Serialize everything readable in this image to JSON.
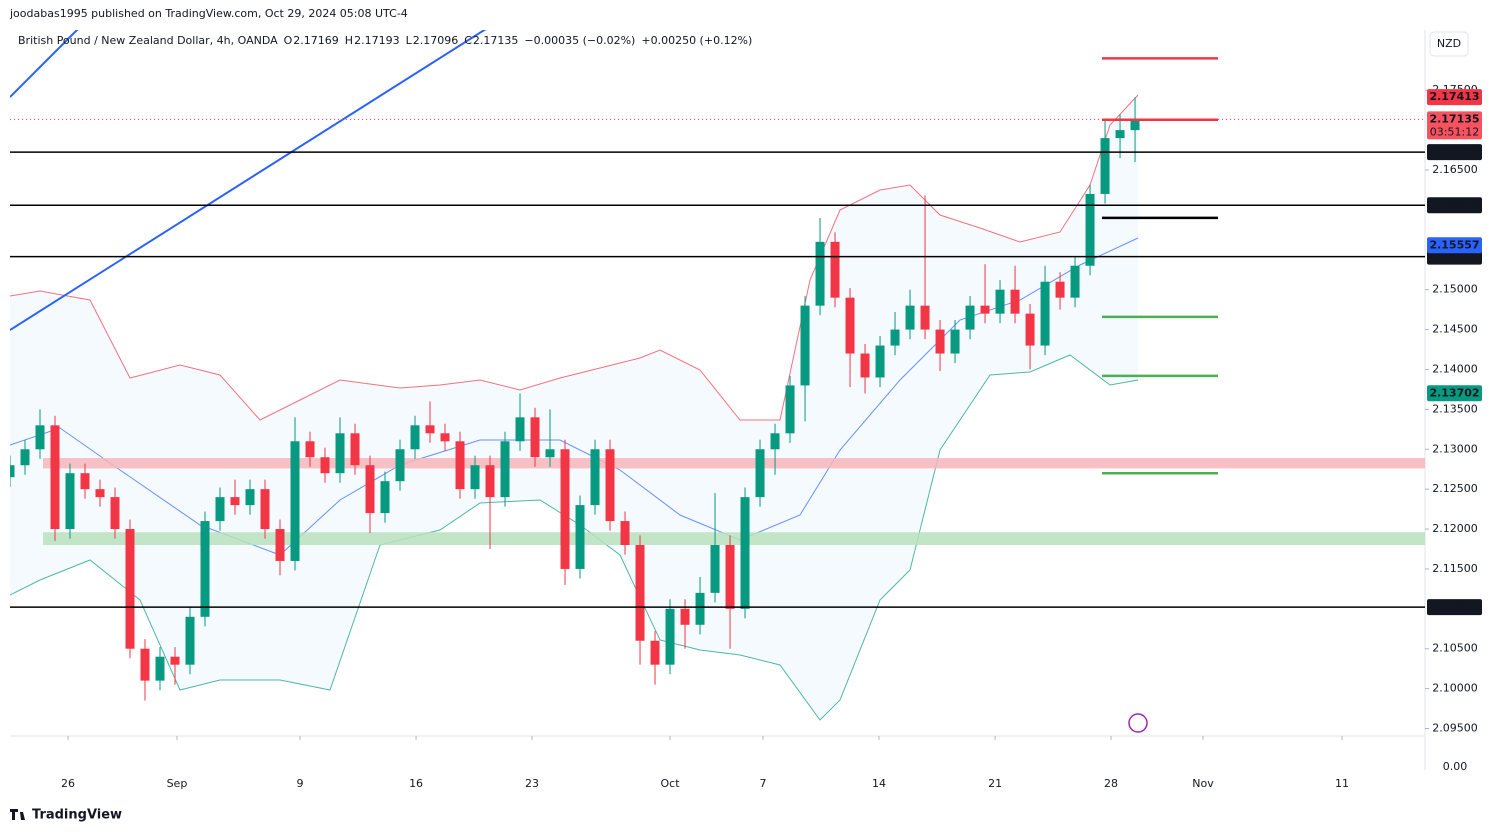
{
  "chart_data": {
    "type": "candlestick",
    "publisher": "joodabas1995 published on TradingView.com, Oct 29, 2024 05:08 UTC-4",
    "symbol": "British Pound / New Zealand Dollar, 4h, OANDA",
    "ohlc_header": [
      {
        "label": "O",
        "value": "2.17169"
      },
      {
        "label": "H",
        "value": "2.17193"
      },
      {
        "label": "L",
        "value": "2.17096"
      },
      {
        "label": "C",
        "value": "2.17135"
      }
    ],
    "change": "−0.00035 (−0.02%)",
    "change2": "+0.00250 (+0.12%)",
    "currency": "NZD",
    "brand": "TradingView",
    "axis_bottom_label": "0.00",
    "up_color": "#089981",
    "down_color": "#f23645",
    "xlim": [
      0,
      94.33
    ],
    "ylim": [
      2.09406,
      2.18255
    ],
    "xticks": [
      {
        "value": 3.87,
        "label": "26"
      },
      {
        "value": 11.13,
        "label": "Sep"
      },
      {
        "value": 19.33,
        "label": "9"
      },
      {
        "value": 27.07,
        "label": "16"
      },
      {
        "value": 34.8,
        "label": "23"
      },
      {
        "value": 44,
        "label": "Oct"
      },
      {
        "value": 50.2,
        "label": "7"
      },
      {
        "value": 57.93,
        "label": "14"
      },
      {
        "value": 65.67,
        "label": "21"
      },
      {
        "value": 73.4,
        "label": "28"
      },
      {
        "value": 79.53,
        "label": "Nov"
      },
      {
        "value": 88.8,
        "label": "11"
      }
    ],
    "yticks": [
      {
        "value": 2.095,
        "label": "2.09500"
      },
      {
        "value": 2.1,
        "label": "2.10000"
      },
      {
        "value": 2.105,
        "label": "2.10500"
      },
      {
        "value": 2.115,
        "label": "2.11500"
      },
      {
        "value": 2.12,
        "label": "2.12000"
      },
      {
        "value": 2.125,
        "label": "2.12500"
      },
      {
        "value": 2.13,
        "label": "2.13000"
      },
      {
        "value": 2.135,
        "label": "2.13500"
      },
      {
        "value": 2.14,
        "label": "2.14000"
      },
      {
        "value": 2.145,
        "label": "2.14500"
      },
      {
        "value": 2.15,
        "label": "2.15000"
      },
      {
        "value": 2.165,
        "label": "2.16500"
      },
      {
        "value": 2.175,
        "label": "2.17500"
      }
    ],
    "open": [
      2.1265,
      2.128,
      2.13,
      2.133,
      2.12,
      2.127,
      2.125,
      2.124,
      2.12,
      2.105,
      2.101,
      2.104,
      2.103,
      2.109,
      2.121,
      2.124,
      2.123,
      2.125,
      2.12,
      2.116,
      2.131,
      2.129,
      2.127,
      2.132,
      2.128,
      2.122,
      2.126,
      2.13,
      2.133,
      2.132,
      2.131,
      2.125,
      2.128,
      2.124,
      2.131,
      2.134,
      2.129,
      2.13,
      2.115,
      2.123,
      2.13,
      2.121,
      2.118,
      2.106,
      2.103,
      2.11,
      2.108,
      2.112,
      2.118,
      2.11,
      2.124,
      2.13,
      2.132,
      2.138,
      2.148,
      2.156,
      2.149,
      2.142,
      2.139,
      2.143,
      2.145,
      2.148,
      2.145,
      2.142,
      2.145,
      2.148,
      2.147,
      2.15,
      2.147,
      2.143,
      2.151,
      2.149,
      2.153,
      2.162,
      2.169,
      2.17
    ],
    "high": [
      2.1292,
      2.1312,
      2.135,
      2.1342,
      2.1282,
      2.1282,
      2.1262,
      2.1252,
      2.1212,
      2.1062,
      2.1052,
      2.1052,
      2.1102,
      2.1222,
      2.1252,
      2.1262,
      2.1262,
      2.1262,
      2.1212,
      2.134,
      2.1322,
      2.1302,
      2.134,
      2.1332,
      2.1292,
      2.1272,
      2.1312,
      2.1342,
      2.136,
      2.1332,
      2.1322,
      2.1292,
      2.1292,
      2.1322,
      2.137,
      2.1352,
      2.135,
      2.1312,
      2.1242,
      2.1312,
      2.1312,
      2.1222,
      2.1192,
      2.1072,
      2.1112,
      2.1112,
      2.114,
      2.1245,
      2.1192,
      2.1252,
      2.1312,
      2.1332,
      2.1392,
      2.1492,
      2.159,
      2.1572,
      2.1502,
      2.1432,
      2.1442,
      2.1472,
      2.15,
      2.1618,
      2.1462,
      2.1462,
      2.1492,
      2.1532,
      2.1512,
      2.153,
      2.1482,
      2.153,
      2.1522,
      2.1542,
      2.1632,
      2.1712,
      2.172,
      2.17413
    ],
    "low": [
      2.1253,
      2.1268,
      2.1288,
      2.1185,
      2.1188,
      2.1238,
      2.1228,
      2.1188,
      2.1038,
      2.0985,
      2.0998,
      2.1005,
      2.1018,
      2.1078,
      2.1198,
      2.1218,
      2.1218,
      2.1188,
      2.1142,
      2.1148,
      2.1278,
      2.1258,
      2.1258,
      2.1268,
      2.1195,
      2.1208,
      2.1248,
      2.1288,
      2.1308,
      2.1298,
      2.1238,
      2.1238,
      2.1175,
      2.1228,
      2.1298,
      2.1278,
      2.1278,
      2.113,
      2.1138,
      2.1218,
      2.1198,
      2.1168,
      2.103,
      2.1005,
      2.1018,
      2.105,
      2.1068,
      2.1108,
      2.105,
      2.1088,
      2.1228,
      2.1268,
      2.1308,
      2.1335,
      2.1468,
      2.1478,
      2.1378,
      2.137,
      2.1378,
      2.1418,
      2.1438,
      2.1438,
      2.1398,
      2.1408,
      2.1438,
      2.1458,
      2.1458,
      2.1458,
      2.14,
      2.1418,
      2.1475,
      2.1478,
      2.1518,
      2.1608,
      2.1665,
      2.166
    ],
    "close": [
      2.128,
      2.13,
      2.133,
      2.12,
      2.127,
      2.125,
      2.124,
      2.12,
      2.105,
      2.101,
      2.104,
      2.103,
      2.109,
      2.121,
      2.124,
      2.123,
      2.125,
      2.12,
      2.116,
      2.131,
      2.129,
      2.127,
      2.132,
      2.128,
      2.122,
      2.126,
      2.13,
      2.133,
      2.132,
      2.131,
      2.125,
      2.128,
      2.124,
      2.131,
      2.134,
      2.129,
      2.13,
      2.115,
      2.123,
      2.13,
      2.121,
      2.118,
      2.106,
      2.103,
      2.11,
      2.108,
      2.112,
      2.118,
      2.11,
      2.124,
      2.13,
      2.132,
      2.138,
      2.148,
      2.156,
      2.149,
      2.142,
      2.139,
      2.143,
      2.145,
      2.148,
      2.145,
      2.142,
      2.145,
      2.148,
      2.147,
      2.15,
      2.147,
      2.143,
      2.151,
      2.149,
      2.153,
      2.162,
      2.169,
      2.17,
      2.17135
    ],
    "levels": [
      {
        "value": 2.16725,
        "label": "2.16725"
      },
      {
        "value": 2.16058,
        "label": "2.16058"
      },
      {
        "value": 2.15414,
        "label": "2.15414"
      },
      {
        "value": 2.11021,
        "label": "2.11021"
      }
    ],
    "price_tags": [
      {
        "value": 2.17413,
        "label": "2.17413",
        "color": "#f23645"
      },
      {
        "value": 2.17135,
        "label": "2.17135",
        "countdown": "03:51:12",
        "color": "#f7525f"
      },
      {
        "value": 2.15557,
        "label": "2.15557",
        "color": "#2962ff"
      },
      {
        "value": 2.13702,
        "label": "2.13702",
        "color": "#089981"
      }
    ],
    "targets": [
      {
        "value": 2.179,
        "color": "#f23645"
      },
      {
        "value": 2.1713,
        "color": "#f23645"
      },
      {
        "value": 2.159,
        "color": "#000000"
      },
      {
        "value": 2.1466,
        "color": "#4caf50"
      },
      {
        "value": 2.1392,
        "color": "#4caf50"
      },
      {
        "value": 2.127,
        "color": "#4caf50"
      }
    ],
    "zones": [
      {
        "low": 2.1276,
        "high": 2.1289,
        "color": "#f7b5bb"
      },
      {
        "low": 2.118,
        "high": 2.1196,
        "color": "#b9e0bd"
      }
    ]
  }
}
